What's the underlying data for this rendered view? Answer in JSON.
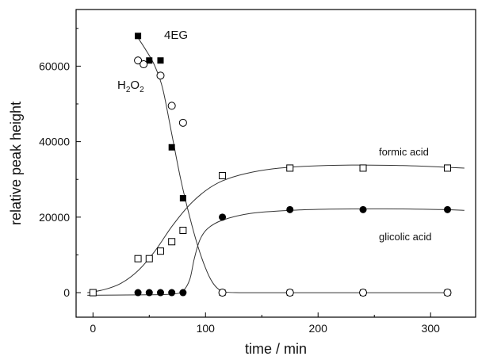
{
  "chart_data": {
    "type": "scatter",
    "title": "",
    "xlabel": "time / min",
    "ylabel": "relative peak height",
    "xlim": [
      -15,
      340
    ],
    "ylim": [
      -6500,
      75000
    ],
    "x_ticks": [
      0,
      100,
      200,
      300
    ],
    "y_ticks": [
      0,
      20000,
      40000,
      60000
    ],
    "grid": false,
    "series": [
      {
        "name": "4EG",
        "marker": "filled-square",
        "points": [
          [
            40,
            68000
          ],
          [
            50,
            61500
          ],
          [
            60,
            61500
          ],
          [
            70,
            38500
          ],
          [
            80,
            25000
          ],
          [
            115,
            0
          ],
          [
            175,
            0
          ],
          [
            240,
            0
          ],
          [
            315,
            0
          ]
        ],
        "fit": [
          [
            40,
            67500
          ],
          [
            48,
            63800
          ],
          [
            55,
            60000
          ],
          [
            62,
            54000
          ],
          [
            70,
            42000
          ],
          [
            78,
            30000
          ],
          [
            86,
            20000
          ],
          [
            93,
            12500
          ],
          [
            100,
            6500
          ],
          [
            106,
            2800
          ],
          [
            112,
            800
          ],
          [
            118,
            150
          ],
          [
            130,
            0
          ],
          [
            175,
            0
          ],
          [
            240,
            0
          ],
          [
            315,
            0
          ]
        ]
      },
      {
        "name": "H2O2",
        "marker": "open-circle",
        "points": [
          [
            40,
            61500
          ],
          [
            45,
            60500
          ],
          [
            60,
            57500
          ],
          [
            70,
            49500
          ],
          [
            80,
            45000
          ],
          [
            115,
            0
          ],
          [
            175,
            0
          ],
          [
            240,
            0
          ],
          [
            315,
            0
          ]
        ]
      },
      {
        "name": "formic acid",
        "marker": "open-square",
        "points": [
          [
            0,
            0
          ],
          [
            40,
            9000
          ],
          [
            50,
            9000
          ],
          [
            60,
            11000
          ],
          [
            70,
            13500
          ],
          [
            80,
            16500
          ],
          [
            115,
            31000
          ],
          [
            175,
            33000
          ],
          [
            240,
            33000
          ],
          [
            315,
            33000
          ]
        ],
        "fit": [
          [
            -5,
            0
          ],
          [
            10,
            800
          ],
          [
            25,
            2500
          ],
          [
            40,
            5800
          ],
          [
            55,
            11000
          ],
          [
            70,
            17500
          ],
          [
            85,
            23000
          ],
          [
            100,
            27000
          ],
          [
            115,
            29600
          ],
          [
            135,
            31500
          ],
          [
            160,
            32800
          ],
          [
            190,
            33500
          ],
          [
            230,
            33800
          ],
          [
            270,
            33700
          ],
          [
            300,
            33400
          ],
          [
            330,
            33000
          ]
        ]
      },
      {
        "name": "glicolic acid",
        "marker": "filled-circle",
        "points": [
          [
            40,
            0
          ],
          [
            50,
            0
          ],
          [
            60,
            0
          ],
          [
            70,
            0
          ],
          [
            80,
            0
          ],
          [
            115,
            20000
          ],
          [
            175,
            22000
          ],
          [
            240,
            22000
          ],
          [
            315,
            22000
          ]
        ],
        "fit": [
          [
            -5,
            -700
          ],
          [
            40,
            -600
          ],
          [
            70,
            -400
          ],
          [
            80,
            500
          ],
          [
            86,
            3500
          ],
          [
            90,
            9000
          ],
          [
            95,
            14000
          ],
          [
            102,
            17000
          ],
          [
            115,
            19200
          ],
          [
            140,
            21000
          ],
          [
            175,
            21800
          ],
          [
            210,
            22100
          ],
          [
            260,
            22200
          ],
          [
            310,
            22000
          ],
          [
            330,
            21800
          ]
        ]
      }
    ],
    "annotations": {
      "label_4eg": "4EG",
      "label_h2o2_base": "H",
      "label_h2o2_sub1": "2",
      "label_h2o2_mid": "O",
      "label_h2o2_sub2": "2",
      "label_formic": "formic acid",
      "label_glicolic": "glicolic acid"
    }
  }
}
